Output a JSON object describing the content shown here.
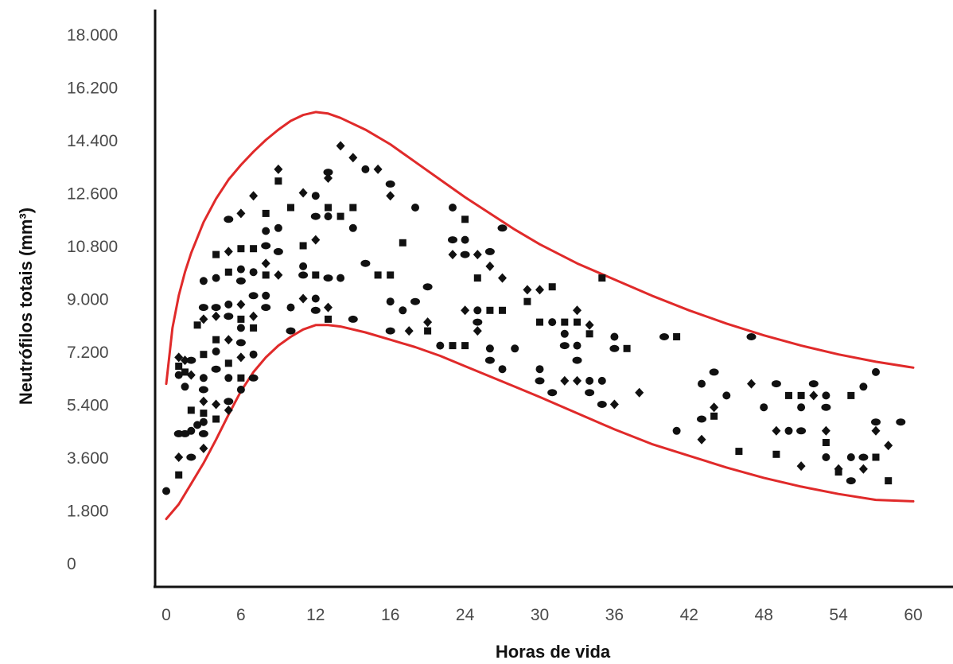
{
  "chart_data": {
    "type": "scatter",
    "title": "",
    "xlabel": "Horas de vida",
    "ylabel": "Neutrófilos totais (mm³)",
    "x_ticks": [
      "0",
      "6",
      "12",
      "16",
      "24",
      "30",
      "36",
      "42",
      "48",
      "54",
      "60"
    ],
    "y_ticks": [
      "0",
      "1.800",
      "3.600",
      "5.400",
      "7.200",
      "9.000",
      "10.800",
      "12.600",
      "14.400",
      "16.200",
      "18.000"
    ],
    "xlim": [
      0,
      60
    ],
    "ylim": [
      0,
      18000
    ],
    "grid": false,
    "colors": {
      "points": "#111111",
      "bounds": "#e02a2a",
      "axes": "#111111"
    },
    "upper_bound": [
      [
        0,
        6100
      ],
      [
        0.5,
        8000
      ],
      [
        1,
        9100
      ],
      [
        1.5,
        9900
      ],
      [
        2,
        10550
      ],
      [
        3,
        11600
      ],
      [
        4,
        12400
      ],
      [
        5,
        13050
      ],
      [
        6,
        13550
      ],
      [
        7,
        14000
      ],
      [
        8,
        14400
      ],
      [
        9,
        14750
      ],
      [
        10,
        15050
      ],
      [
        11,
        15250
      ],
      [
        12,
        15350
      ],
      [
        13,
        15300
      ],
      [
        14,
        15150
      ],
      [
        16,
        14750
      ],
      [
        18,
        14250
      ],
      [
        20,
        13650
      ],
      [
        22,
        13050
      ],
      [
        24,
        12450
      ],
      [
        26,
        11900
      ],
      [
        28,
        11350
      ],
      [
        30,
        10850
      ],
      [
        33,
        10200
      ],
      [
        36,
        9650
      ],
      [
        39,
        9100
      ],
      [
        42,
        8600
      ],
      [
        45,
        8150
      ],
      [
        48,
        7750
      ],
      [
        51,
        7400
      ],
      [
        54,
        7100
      ],
      [
        57,
        6850
      ],
      [
        60,
        6650
      ]
    ],
    "lower_bound": [
      [
        0,
        1500
      ],
      [
        1,
        2000
      ],
      [
        2,
        2700
      ],
      [
        3,
        3400
      ],
      [
        4,
        4200
      ],
      [
        5,
        5050
      ],
      [
        6,
        5850
      ],
      [
        7,
        6500
      ],
      [
        8,
        7000
      ],
      [
        9,
        7400
      ],
      [
        10,
        7700
      ],
      [
        11,
        7950
      ],
      [
        12,
        8100
      ],
      [
        13,
        8100
      ],
      [
        14,
        8050
      ],
      [
        16,
        7850
      ],
      [
        18,
        7600
      ],
      [
        20,
        7350
      ],
      [
        22,
        7050
      ],
      [
        24,
        6700
      ],
      [
        26,
        6350
      ],
      [
        28,
        6000
      ],
      [
        30,
        5650
      ],
      [
        33,
        5100
      ],
      [
        36,
        4550
      ],
      [
        39,
        4050
      ],
      [
        42,
        3650
      ],
      [
        45,
        3250
      ],
      [
        48,
        2900
      ],
      [
        51,
        2600
      ],
      [
        54,
        2350
      ],
      [
        57,
        2150
      ],
      [
        60,
        2100
      ]
    ],
    "points": [
      [
        0,
        2450
      ],
      [
        1,
        3000
      ],
      [
        1,
        3600
      ],
      [
        1,
        4400
      ],
      [
        1,
        6400
      ],
      [
        1,
        6700
      ],
      [
        1,
        7000
      ],
      [
        1.5,
        4400
      ],
      [
        1.5,
        6000
      ],
      [
        1.5,
        6500
      ],
      [
        1.5,
        6900
      ],
      [
        2,
        3600
      ],
      [
        2,
        4500
      ],
      [
        2,
        5200
      ],
      [
        2,
        6400
      ],
      [
        2,
        6900
      ],
      [
        2.5,
        4700
      ],
      [
        2.5,
        8100
      ],
      [
        3,
        3900
      ],
      [
        3,
        4400
      ],
      [
        3,
        4800
      ],
      [
        3,
        5100
      ],
      [
        3,
        5500
      ],
      [
        3,
        5900
      ],
      [
        3,
        6300
      ],
      [
        3,
        7100
      ],
      [
        3,
        8300
      ],
      [
        3,
        8700
      ],
      [
        3,
        9600
      ],
      [
        4,
        4900
      ],
      [
        4,
        5400
      ],
      [
        4,
        6600
      ],
      [
        4,
        7200
      ],
      [
        4,
        7600
      ],
      [
        4,
        8400
      ],
      [
        4,
        8700
      ],
      [
        4,
        9700
      ],
      [
        4,
        10500
      ],
      [
        5,
        5200
      ],
      [
        5,
        5500
      ],
      [
        5,
        6300
      ],
      [
        5,
        6800
      ],
      [
        5,
        7600
      ],
      [
        5,
        8400
      ],
      [
        5,
        8800
      ],
      [
        5,
        9900
      ],
      [
        5,
        10600
      ],
      [
        5,
        11700
      ],
      [
        6,
        5900
      ],
      [
        6,
        6300
      ],
      [
        6,
        7000
      ],
      [
        6,
        7500
      ],
      [
        6,
        8000
      ],
      [
        6,
        8300
      ],
      [
        6,
        8800
      ],
      [
        6,
        9600
      ],
      [
        6,
        10000
      ],
      [
        6,
        10700
      ],
      [
        6,
        11900
      ],
      [
        7,
        6300
      ],
      [
        7,
        7100
      ],
      [
        7,
        8000
      ],
      [
        7,
        8400
      ],
      [
        7,
        9100
      ],
      [
        7,
        9900
      ],
      [
        7,
        10700
      ],
      [
        7,
        12500
      ],
      [
        8,
        8700
      ],
      [
        8,
        9100
      ],
      [
        8,
        9800
      ],
      [
        8,
        10200
      ],
      [
        8,
        10800
      ],
      [
        8,
        11300
      ],
      [
        8,
        11900
      ],
      [
        9,
        9800
      ],
      [
        9,
        10600
      ],
      [
        9,
        11400
      ],
      [
        9,
        13000
      ],
      [
        9,
        13400
      ],
      [
        10,
        7900
      ],
      [
        10,
        8700
      ],
      [
        10,
        12100
      ],
      [
        11,
        9000
      ],
      [
        11,
        9800
      ],
      [
        11,
        10100
      ],
      [
        11,
        10800
      ],
      [
        11,
        12600
      ],
      [
        12,
        8600
      ],
      [
        12,
        9000
      ],
      [
        12,
        9800
      ],
      [
        12,
        11000
      ],
      [
        12,
        11800
      ],
      [
        12,
        12500
      ],
      [
        13,
        8300
      ],
      [
        13,
        8700
      ],
      [
        13,
        9700
      ],
      [
        13,
        11800
      ],
      [
        13,
        12100
      ],
      [
        13,
        13100
      ],
      [
        13,
        13300
      ],
      [
        14,
        9700
      ],
      [
        14,
        11800
      ],
      [
        14,
        14200
      ],
      [
        15,
        8300
      ],
      [
        15,
        11400
      ],
      [
        15,
        12100
      ],
      [
        15,
        13800
      ],
      [
        16,
        10200
      ],
      [
        16,
        13400
      ],
      [
        17,
        9800
      ],
      [
        17,
        13400
      ],
      [
        18,
        7900
      ],
      [
        18,
        8900
      ],
      [
        18,
        9800
      ],
      [
        18,
        12500
      ],
      [
        18,
        12900
      ],
      [
        19,
        8600
      ],
      [
        19,
        10900
      ],
      [
        19.5,
        7900
      ],
      [
        20,
        8900
      ],
      [
        20,
        12100
      ],
      [
        21,
        7900
      ],
      [
        21,
        8200
      ],
      [
        21,
        9400
      ],
      [
        22,
        7400
      ],
      [
        23,
        7400
      ],
      [
        23,
        10500
      ],
      [
        23,
        11000
      ],
      [
        23,
        12100
      ],
      [
        24,
        7400
      ],
      [
        24,
        8600
      ],
      [
        24,
        10500
      ],
      [
        24,
        11000
      ],
      [
        24,
        11700
      ],
      [
        25,
        7900
      ],
      [
        25,
        8200
      ],
      [
        25,
        8600
      ],
      [
        25,
        9700
      ],
      [
        25,
        10500
      ],
      [
        26,
        6900
      ],
      [
        26,
        7300
      ],
      [
        26,
        8600
      ],
      [
        26,
        10100
      ],
      [
        26,
        10600
      ],
      [
        27,
        6600
      ],
      [
        27,
        8600
      ],
      [
        27,
        9700
      ],
      [
        27,
        11400
      ],
      [
        28,
        7300
      ],
      [
        29,
        8900
      ],
      [
        29,
        9300
      ],
      [
        30,
        6200
      ],
      [
        30,
        6600
      ],
      [
        30,
        8200
      ],
      [
        30,
        9300
      ],
      [
        31,
        5800
      ],
      [
        31,
        8200
      ],
      [
        31,
        9400
      ],
      [
        32,
        6200
      ],
      [
        32,
        7400
      ],
      [
        32,
        7800
      ],
      [
        32,
        8200
      ],
      [
        33,
        6200
      ],
      [
        33,
        6900
      ],
      [
        33,
        7400
      ],
      [
        33,
        8200
      ],
      [
        33,
        8600
      ],
      [
        34,
        5800
      ],
      [
        34,
        6200
      ],
      [
        34,
        7800
      ],
      [
        34,
        8100
      ],
      [
        35,
        5400
      ],
      [
        35,
        6200
      ],
      [
        35,
        9700
      ],
      [
        36,
        5400
      ],
      [
        36,
        7300
      ],
      [
        36,
        7700
      ],
      [
        37,
        7300
      ],
      [
        38,
        5800
      ],
      [
        40,
        7700
      ],
      [
        41,
        4500
      ],
      [
        41,
        7700
      ],
      [
        43,
        4200
      ],
      [
        43,
        4900
      ],
      [
        43,
        6100
      ],
      [
        44,
        5000
      ],
      [
        44,
        5300
      ],
      [
        44,
        6500
      ],
      [
        45,
        5700
      ],
      [
        46,
        3800
      ],
      [
        47,
        6100
      ],
      [
        47,
        7700
      ],
      [
        48,
        5300
      ],
      [
        49,
        3700
      ],
      [
        49,
        4500
      ],
      [
        49,
        6100
      ],
      [
        50,
        4500
      ],
      [
        50,
        5700
      ],
      [
        51,
        3300
      ],
      [
        51,
        4500
      ],
      [
        51,
        5300
      ],
      [
        51,
        5700
      ],
      [
        52,
        5700
      ],
      [
        52,
        6100
      ],
      [
        53,
        3600
      ],
      [
        53,
        4100
      ],
      [
        53,
        4500
      ],
      [
        53,
        5300
      ],
      [
        53,
        5700
      ],
      [
        54,
        3100
      ],
      [
        54,
        3200
      ],
      [
        55,
        2800
      ],
      [
        55,
        3600
      ],
      [
        55,
        5700
      ],
      [
        56,
        3200
      ],
      [
        56,
        3600
      ],
      [
        56,
        6000
      ],
      [
        57,
        3600
      ],
      [
        57,
        4500
      ],
      [
        57,
        4800
      ],
      [
        57,
        6500
      ],
      [
        58,
        2800
      ],
      [
        58,
        4000
      ],
      [
        59,
        4800
      ]
    ]
  }
}
